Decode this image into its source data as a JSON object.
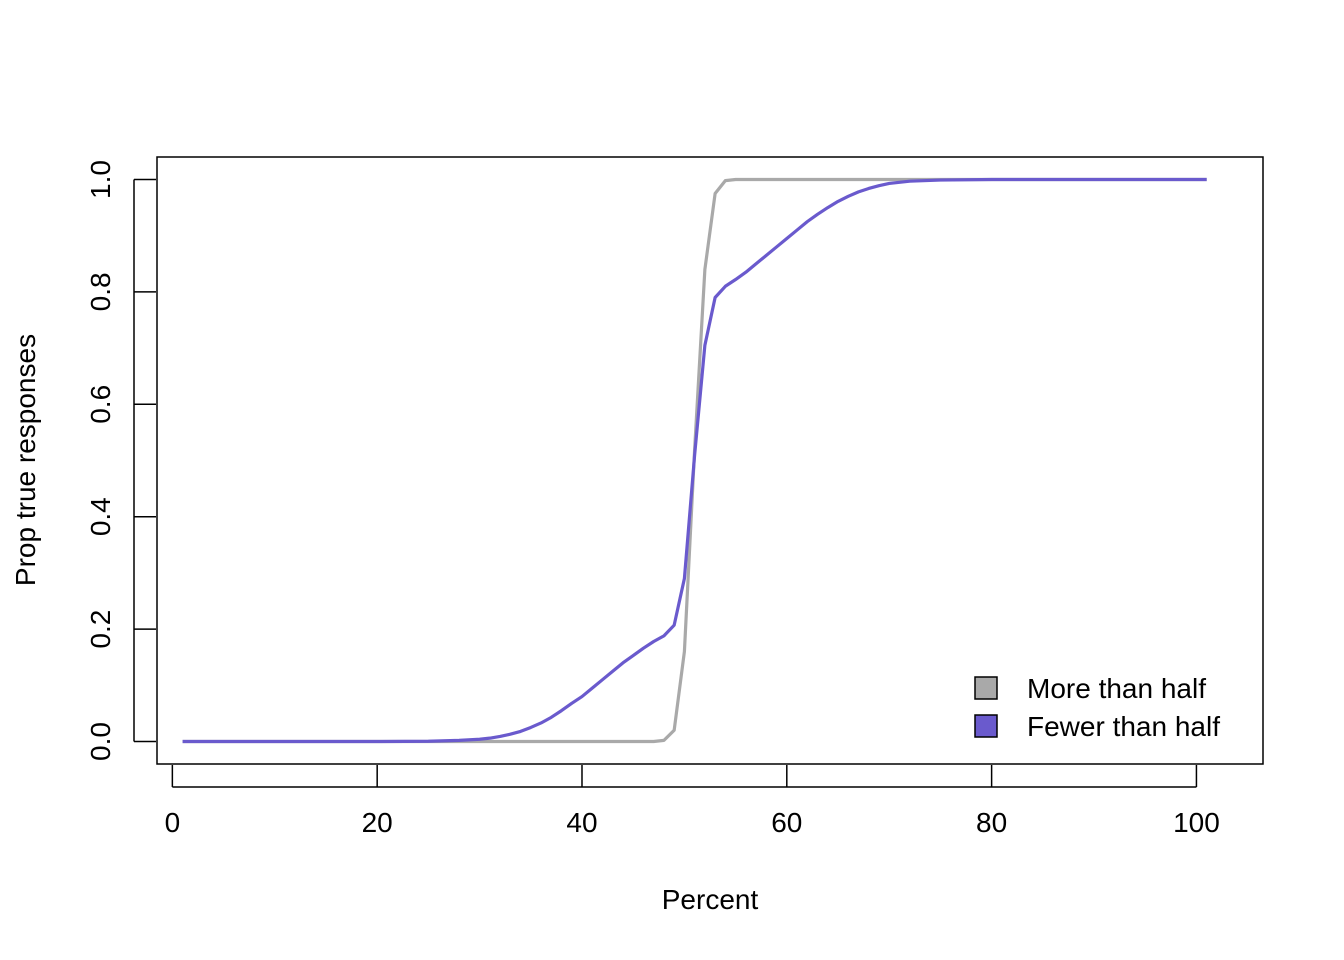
{
  "chart_data": {
    "type": "line",
    "xlabel": "Percent",
    "ylabel": "Prop true responses",
    "xlim": [
      -1.5,
      106.5
    ],
    "ylim": [
      -0.04,
      1.04
    ],
    "x_ticks": [
      0,
      20,
      40,
      60,
      80,
      100
    ],
    "y_ticks": [
      0.0,
      0.2,
      0.4,
      0.6,
      0.8,
      1.0
    ],
    "x_tick_labels": [
      "0",
      "20",
      "40",
      "60",
      "80",
      "100"
    ],
    "y_tick_labels": [
      "0.0",
      "0.2",
      "0.4",
      "0.6",
      "0.8",
      "1.0"
    ],
    "grid": false,
    "legend_position": "bottom-right",
    "series": [
      {
        "name": "More than half",
        "color": "#A9A9A9",
        "points": [
          [
            1,
            0
          ],
          [
            20,
            0
          ],
          [
            40,
            0
          ],
          [
            47,
            0
          ],
          [
            48,
            0.002
          ],
          [
            49,
            0.02
          ],
          [
            50,
            0.16
          ],
          [
            51,
            0.52
          ],
          [
            52,
            0.84
          ],
          [
            53,
            0.975
          ],
          [
            54,
            0.998
          ],
          [
            55,
            1.0
          ],
          [
            60,
            1.0
          ],
          [
            80,
            1.0
          ],
          [
            101,
            1.0
          ]
        ]
      },
      {
        "name": "Fewer than half",
        "color": "#6A5ACD",
        "points": [
          [
            1,
            0
          ],
          [
            20,
            0
          ],
          [
            25,
            0.0005
          ],
          [
            28,
            0.002
          ],
          [
            30,
            0.004
          ],
          [
            31,
            0.006
          ],
          [
            32,
            0.009
          ],
          [
            33,
            0.013
          ],
          [
            34,
            0.018
          ],
          [
            35,
            0.025
          ],
          [
            36,
            0.033
          ],
          [
            37,
            0.043
          ],
          [
            38,
            0.055
          ],
          [
            39,
            0.068
          ],
          [
            40,
            0.08
          ],
          [
            41,
            0.095
          ],
          [
            42,
            0.11
          ],
          [
            43,
            0.125
          ],
          [
            44,
            0.14
          ],
          [
            45,
            0.153
          ],
          [
            46,
            0.166
          ],
          [
            47,
            0.178
          ],
          [
            48,
            0.188
          ],
          [
            49,
            0.207
          ],
          [
            50,
            0.29
          ],
          [
            51,
            0.51
          ],
          [
            52,
            0.705
          ],
          [
            53,
            0.79
          ],
          [
            54,
            0.81
          ],
          [
            55,
            0.822
          ],
          [
            56,
            0.835
          ],
          [
            57,
            0.85
          ],
          [
            58,
            0.865
          ],
          [
            59,
            0.88
          ],
          [
            60,
            0.895
          ],
          [
            61,
            0.91
          ],
          [
            62,
            0.925
          ],
          [
            63,
            0.938
          ],
          [
            64,
            0.95
          ],
          [
            65,
            0.961
          ],
          [
            66,
            0.97
          ],
          [
            67,
            0.978
          ],
          [
            68,
            0.984
          ],
          [
            69,
            0.989
          ],
          [
            70,
            0.993
          ],
          [
            72,
            0.997
          ],
          [
            75,
            0.999
          ],
          [
            80,
            1.0
          ],
          [
            101,
            1.0
          ]
        ]
      }
    ]
  }
}
